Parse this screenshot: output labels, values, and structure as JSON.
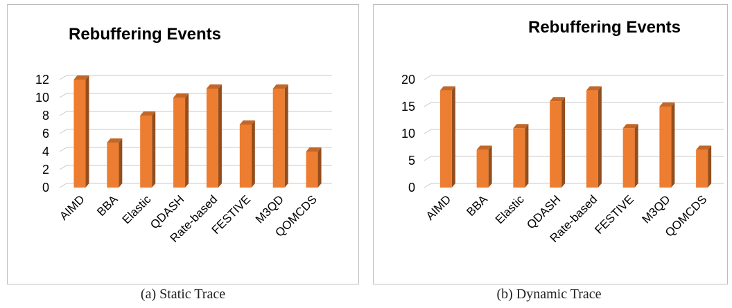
{
  "figures": [
    {
      "caption": "(a) Static Trace",
      "chart_data": {
        "type": "bar",
        "title": "Rebuffering Events",
        "categories": [
          "AIMD",
          "BBA",
          "Elastic",
          "QDASH",
          "Rate-based",
          "FESTIVE",
          "M3QD",
          "QOMCDS"
        ],
        "values": [
          12,
          5,
          8,
          10,
          11,
          7,
          11,
          4
        ],
        "ylim": [
          0,
          12
        ],
        "yticks": [
          0,
          2,
          4,
          6,
          8,
          10,
          12
        ],
        "grid": true,
        "bar_color": "#ED7D31"
      }
    },
    {
      "caption": "(b) Dynamic Trace",
      "chart_data": {
        "type": "bar",
        "title": "Rebuffering Events",
        "categories": [
          "AIMD",
          "BBA",
          "Elastic",
          "QDASH",
          "Rate-based",
          "FESTIVE",
          "M3QD",
          "QOMCDS"
        ],
        "values": [
          18,
          7,
          11,
          16,
          18,
          11,
          15,
          7
        ],
        "ylim": [
          0,
          20
        ],
        "yticks": [
          0,
          5,
          10,
          15,
          20
        ],
        "grid": true,
        "bar_color": "#ED7D31"
      }
    }
  ]
}
